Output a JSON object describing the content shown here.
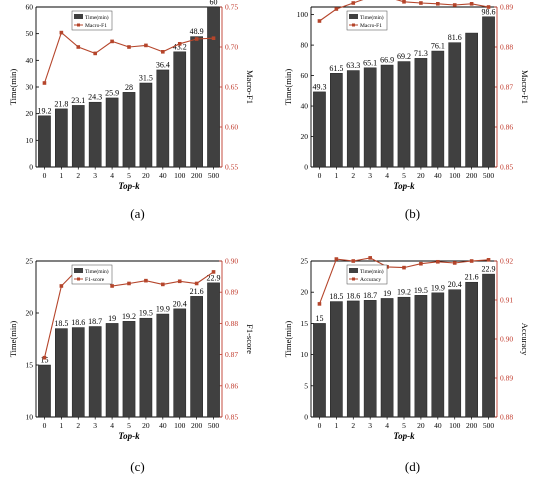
{
  "colors": {
    "bar": "#404040",
    "bar_edge": "#222222",
    "line": "#b5452b",
    "right_axis": "#c0392b",
    "axis": "#000000"
  },
  "chart_data": [
    {
      "type": "bar",
      "panel_label": "(a)",
      "categories": [
        "0",
        "1",
        "2",
        "3",
        "4",
        "5",
        "20",
        "40",
        "100",
        "200",
        "500"
      ],
      "xlabel": "Top-k",
      "ylabel": "Time(min)",
      "ylabel_right": "Macro-F1",
      "ylim": [
        0,
        60
      ],
      "yticks": [
        0,
        10,
        20,
        30,
        40,
        50,
        60
      ],
      "ylim_right": [
        0.55,
        0.75
      ],
      "yticks_right": [
        "0.55",
        "0.60",
        "0.65",
        "0.70",
        "0.75"
      ],
      "legend_position": "top-left",
      "bar_series": {
        "name": "Time(min)",
        "values": [
          19.2,
          21.8,
          23.1,
          24.3,
          25.9,
          28,
          31.5,
          36.4,
          43.2,
          48.9,
          60
        ],
        "labels": [
          "19.2",
          "21.8",
          "23.1",
          "24.3",
          "25.9",
          "28",
          "31.5",
          "36.4",
          "43.2",
          "48.9",
          "60"
        ]
      },
      "line_series": {
        "name": "Macro-F1",
        "values": [
          0.655,
          0.718,
          0.7,
          0.692,
          0.707,
          0.7,
          0.702,
          0.694,
          0.704,
          0.71,
          0.711
        ]
      }
    },
    {
      "type": "bar",
      "panel_label": "(b)",
      "categories": [
        "0",
        "1",
        "2",
        "3",
        "4",
        "5",
        "20",
        "40",
        "100",
        "200",
        "500"
      ],
      "xlabel": "Top-k",
      "ylabel": "Time(min)",
      "ylabel_right": "Macro-F1",
      "ylim": [
        0,
        105
      ],
      "yticks": [
        0,
        20,
        40,
        60,
        80,
        100
      ],
      "ylim_right": [
        0.85,
        0.89
      ],
      "yticks_right": [
        "0.85",
        "0.86",
        "0.87",
        "0.88",
        "0.89"
      ],
      "legend_position": "top-left",
      "bar_series": {
        "name": "Time(min)",
        "values": [
          49.3,
          61.5,
          63.3,
          65.1,
          66.9,
          69.2,
          71.3,
          76.1,
          81.6,
          87.9,
          98.6
        ],
        "labels": [
          "49.3",
          "61.5",
          "63.3",
          "65.1",
          "66.9",
          "69.2",
          "71.3",
          "76.1",
          "81.6",
          "",
          "98.6"
        ]
      },
      "line_series": {
        "name": "Macro-F1",
        "values": [
          0.8865,
          0.8895,
          0.891,
          0.8925,
          0.8925,
          0.8913,
          0.891,
          0.8908,
          0.8905,
          0.8908,
          0.89
        ]
      }
    },
    {
      "type": "bar",
      "panel_label": "(c)",
      "categories": [
        "0",
        "1",
        "2",
        "3",
        "4",
        "5",
        "20",
        "40",
        "100",
        "200",
        "500"
      ],
      "xlabel": "Top-k",
      "ylabel": "Time(min)",
      "ylabel_right": "F1-score",
      "ylim": [
        10,
        25
      ],
      "yticks": [
        10,
        15,
        20,
        25
      ],
      "ylim_right": [
        0.85,
        0.9
      ],
      "yticks_right": [
        "0.85",
        "0.86",
        "0.87",
        "0.88",
        "0.89",
        "0.90"
      ],
      "legend_position": "top-left",
      "bar_series": {
        "name": "Time(min)",
        "values": [
          15,
          18.5,
          18.6,
          18.7,
          19,
          19.2,
          19.5,
          19.9,
          20.4,
          21.6,
          22.9
        ],
        "labels": [
          "15",
          "18.5",
          "18.6",
          "18.7",
          "19",
          "19.2",
          "19.5",
          "19.9",
          "20.4",
          "21.6",
          "22.9"
        ]
      },
      "line_series": {
        "name": "F1-score",
        "values": [
          0.869,
          0.892,
          0.8975,
          0.898,
          0.892,
          0.8928,
          0.8937,
          0.8925,
          0.8935,
          0.8928,
          0.8965
        ]
      }
    },
    {
      "type": "bar",
      "panel_label": "(d)",
      "categories": [
        "0",
        "1",
        "2",
        "3",
        "4",
        "5",
        "20",
        "40",
        "100",
        "200",
        "500"
      ],
      "xlabel": "Top-k",
      "ylabel": "Time(min)",
      "ylabel_right": "Accuracy",
      "ylim": [
        0,
        25
      ],
      "yticks": [
        0,
        5,
        10,
        15,
        20,
        25
      ],
      "ylim_right": [
        0.88,
        0.92
      ],
      "yticks_right": [
        "0.88",
        "0.89",
        "0.90",
        "0.91",
        "0.92"
      ],
      "legend_position": "top-left",
      "bar_series": {
        "name": "Time(min)",
        "values": [
          15,
          18.5,
          18.6,
          18.7,
          19,
          19.2,
          19.5,
          19.9,
          20.4,
          21.6,
          22.9
        ],
        "labels": [
          "15",
          "18.5",
          "18.6",
          "18.7",
          "19",
          "19.2",
          "19.5",
          "19.9",
          "20.4",
          "21.6",
          "22.9"
        ]
      },
      "line_series": {
        "name": "Accuracy",
        "values": [
          0.909,
          0.9205,
          0.92,
          0.9208,
          0.9185,
          0.9183,
          0.9193,
          0.9198,
          0.9195,
          0.92,
          0.9203
        ]
      }
    }
  ]
}
